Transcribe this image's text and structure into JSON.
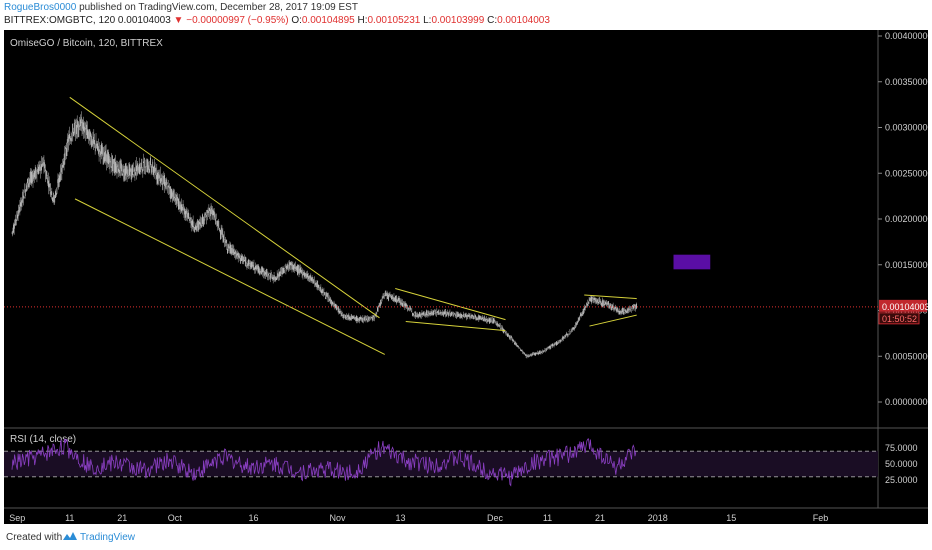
{
  "header": {
    "author": "RogueBros0000",
    "published_text": "published on TradingView.com, December 28, 2017 19:09 EST",
    "symbol": "BITTREX:OMGBTC, 120",
    "last": "0.00104003",
    "change": "▼ −0.00000997 (−0.95%)",
    "open_label": "O:",
    "open": "0.00104895",
    "high_label": "H:",
    "high": "0.00105231",
    "low_label": "L:",
    "low": "0.00103999",
    "close_label": "C:",
    "close": "0.00104003"
  },
  "footer": {
    "created_with": "Created with",
    "brand": "TradingView"
  },
  "colors": {
    "background": "#000000",
    "candle": "#e6e6e6",
    "trendline": "#d6d23a",
    "rsi": "#8a3fc2",
    "price_line": "#e0302f",
    "purple_box": "#5a0ea5"
  },
  "chart_data": [
    {
      "type": "candlestick",
      "title": "OmiseGO / Bitcoin, 120, BITTREX",
      "ylim": [
        0,
        0.004
      ],
      "y_ticks": [
        "0.00400000",
        "0.00350000",
        "0.00300000",
        "0.00250000",
        "0.00200000",
        "0.00150000",
        "0.00100000",
        "0.00050000",
        "0.00000000"
      ],
      "x_ticks": [
        "Sep",
        "11",
        "21",
        "Oct",
        "16",
        "Nov",
        "13",
        "Dec",
        "11",
        "21",
        "2018",
        "15",
        "Feb"
      ],
      "last_price_label": "0.00104003",
      "countdown_label": "01:50:52",
      "series": [
        {
          "name": "close",
          "x": [
            "2017-08-31",
            "2017-09-03",
            "2017-09-06",
            "2017-09-08",
            "2017-09-11",
            "2017-09-13",
            "2017-09-16",
            "2017-09-19",
            "2017-09-22",
            "2017-09-26",
            "2017-09-29",
            "2017-10-02",
            "2017-10-05",
            "2017-10-08",
            "2017-10-11",
            "2017-10-14",
            "2017-10-17",
            "2017-10-20",
            "2017-10-23",
            "2017-10-27",
            "2017-10-30",
            "2017-11-02",
            "2017-11-05",
            "2017-11-08",
            "2017-11-10",
            "2017-11-13",
            "2017-11-16",
            "2017-11-20",
            "2017-11-24",
            "2017-11-28",
            "2017-12-01",
            "2017-12-04",
            "2017-12-07",
            "2017-12-10",
            "2017-12-13",
            "2017-12-16",
            "2017-12-19",
            "2017-12-22",
            "2017-12-25",
            "2017-12-28"
          ],
          "y": [
            0.00185,
            0.0024,
            0.0026,
            0.0022,
            0.0029,
            0.00305,
            0.0028,
            0.0026,
            0.0025,
            0.0026,
            0.0024,
            0.00215,
            0.0019,
            0.0021,
            0.0017,
            0.00155,
            0.00145,
            0.00135,
            0.0015,
            0.00135,
            0.00115,
            0.00095,
            0.0009,
            0.00092,
            0.00118,
            0.0011,
            0.00095,
            0.00098,
            0.00095,
            0.00092,
            0.00088,
            0.0007,
            0.0005,
            0.00055,
            0.00065,
            0.0008,
            0.00112,
            0.00108,
            0.00098,
            0.00104
          ]
        }
      ],
      "trendlines": [
        {
          "name": "falling-wedge-upper",
          "x": [
            "2017-09-11",
            "2017-11-09"
          ],
          "y": [
            0.00333,
            0.00092
          ]
        },
        {
          "name": "falling-wedge-lower",
          "x": [
            "2017-09-12",
            "2017-11-10"
          ],
          "y": [
            0.00222,
            0.00052
          ]
        },
        {
          "name": "flag-upper",
          "x": [
            "2017-11-12",
            "2017-12-03"
          ],
          "y": [
            0.00124,
            0.0009
          ]
        },
        {
          "name": "flag-lower",
          "x": [
            "2017-11-14",
            "2017-12-03"
          ],
          "y": [
            0.00088,
            0.00078
          ]
        },
        {
          "name": "triangle-upper",
          "x": [
            "2017-12-18",
            "2017-12-28"
          ],
          "y": [
            0.00117,
            0.00113
          ]
        },
        {
          "name": "triangle-lower",
          "x": [
            "2017-12-19",
            "2017-12-28"
          ],
          "y": [
            0.00083,
            0.00095
          ]
        }
      ],
      "target_box": {
        "x": [
          "2018-01-04",
          "2018-01-11"
        ],
        "y": [
          0.00145,
          0.00161
        ]
      }
    },
    {
      "type": "line",
      "title": "RSI (14, close)",
      "ylim": [
        0,
        100
      ],
      "y_ticks": [
        "75.0000",
        "50.0000",
        "25.0000"
      ],
      "bands": [
        30,
        70
      ],
      "series": [
        {
          "name": "RSI",
          "x": [
            "2017-08-31",
            "2017-09-05",
            "2017-09-10",
            "2017-09-15",
            "2017-09-20",
            "2017-09-25",
            "2017-09-30",
            "2017-10-05",
            "2017-10-10",
            "2017-10-15",
            "2017-10-20",
            "2017-10-25",
            "2017-10-30",
            "2017-11-04",
            "2017-11-09",
            "2017-11-14",
            "2017-11-19",
            "2017-11-24",
            "2017-11-29",
            "2017-12-04",
            "2017-12-09",
            "2017-12-14",
            "2017-12-19",
            "2017-12-24",
            "2017-12-28"
          ],
          "y": [
            50,
            62,
            78,
            45,
            52,
            40,
            55,
            35,
            62,
            45,
            50,
            38,
            42,
            35,
            75,
            55,
            48,
            60,
            40,
            30,
            55,
            62,
            80,
            45,
            70
          ]
        }
      ]
    }
  ]
}
